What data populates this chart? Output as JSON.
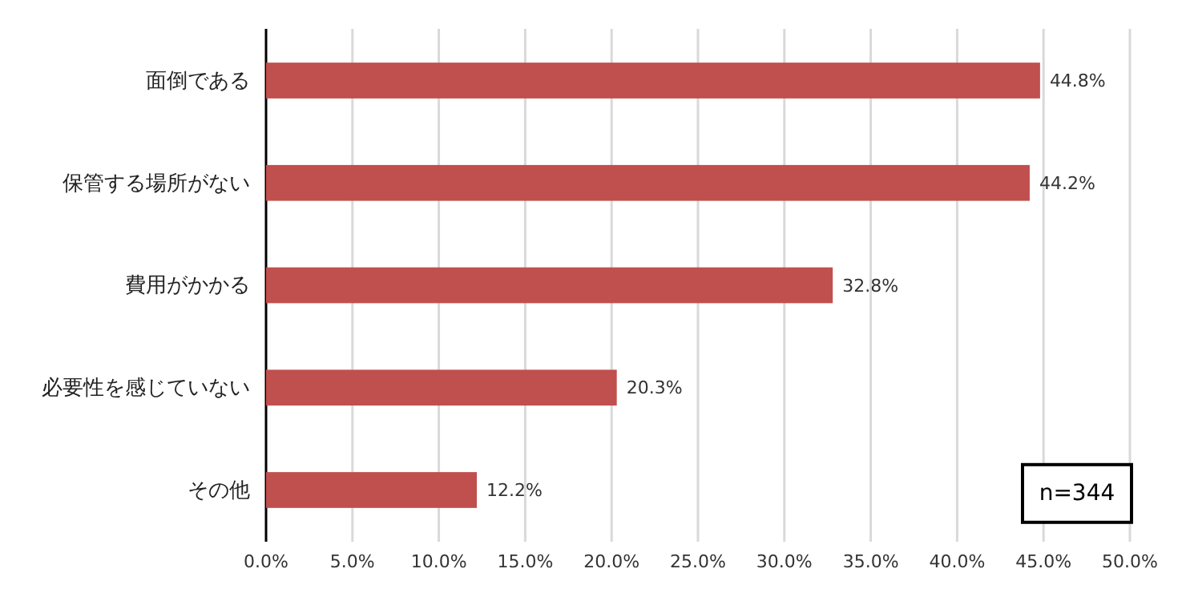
{
  "chart_data": {
    "type": "bar",
    "orientation": "horizontal",
    "categories": [
      "面倒である",
      "保管する場所がない",
      "費用がかかる",
      "必要性を感じていない",
      "その他"
    ],
    "values": [
      44.8,
      44.2,
      32.8,
      20.3,
      12.2
    ],
    "value_labels": [
      "44.8%",
      "44.2%",
      "32.8%",
      "20.3%",
      "12.2%"
    ],
    "color": "#c0504d",
    "xlim": [
      0,
      50
    ],
    "xticks": [
      {
        "value": 0,
        "label": "0.0%"
      },
      {
        "value": 5,
        "label": "5.0%"
      },
      {
        "value": 10,
        "label": "10.0%"
      },
      {
        "value": 15,
        "label": "15.0%"
      },
      {
        "value": 20,
        "label": "20.0%"
      },
      {
        "value": 25,
        "label": "25.0%"
      },
      {
        "value": 30,
        "label": "30.0%"
      },
      {
        "value": 35,
        "label": "35.0%"
      },
      {
        "value": 40,
        "label": "40.0%"
      },
      {
        "value": 45,
        "label": "45.0%"
      },
      {
        "value": 50,
        "label": "50.0%"
      }
    ],
    "grid": "x",
    "annotations": [
      "n=344"
    ]
  }
}
